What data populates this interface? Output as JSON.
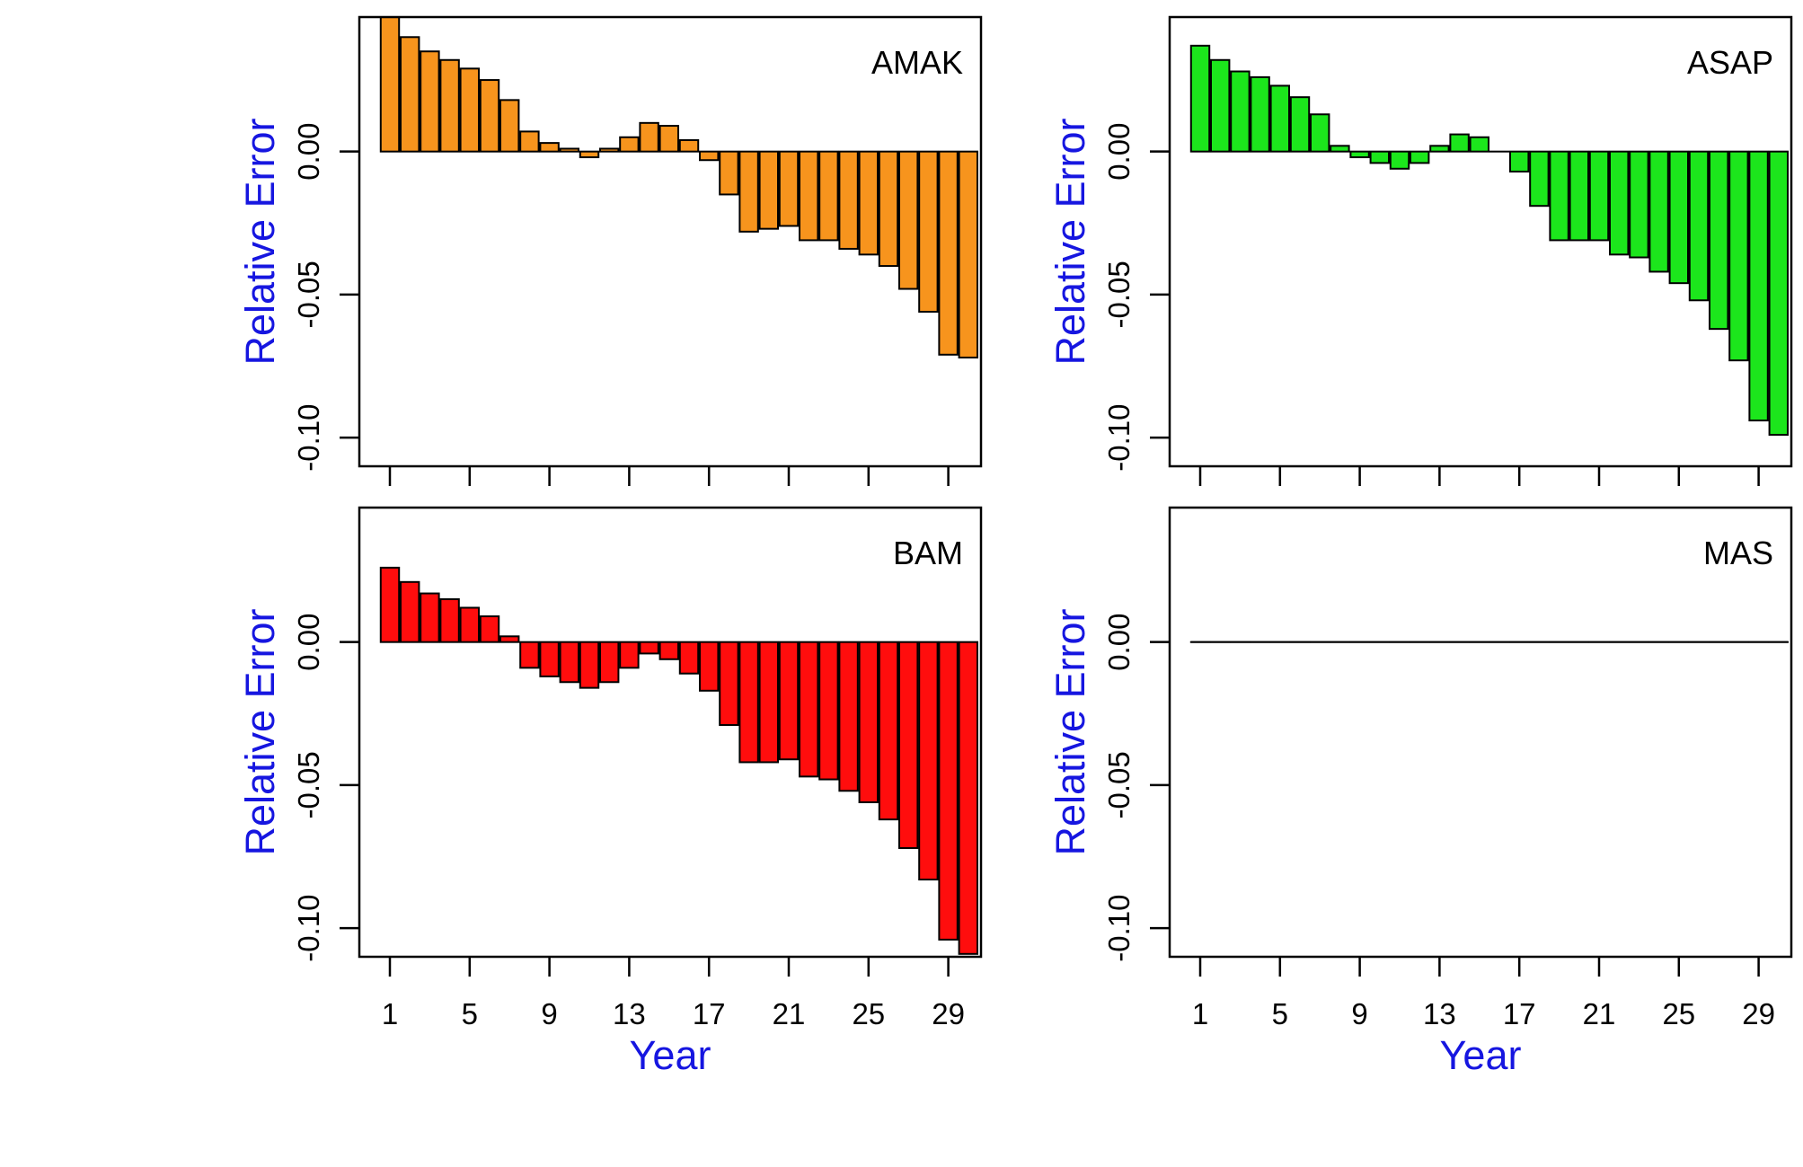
{
  "chart_data": [
    {
      "type": "bar",
      "panel_label": "AMAK",
      "ylabel": "Relative Error",
      "xlabel": "",
      "bar_color": "#F7941D",
      "ylim": [
        -0.11,
        0.047
      ],
      "yticks": [
        "-0.10",
        "-0.05",
        "0.00"
      ],
      "yticks_values": [
        -0.1,
        -0.05,
        0.0
      ],
      "xticks": [
        "1",
        "5",
        "9",
        "13",
        "17",
        "21",
        "25",
        "29"
      ],
      "years": [
        1,
        2,
        3,
        4,
        5,
        6,
        7,
        8,
        9,
        10,
        11,
        12,
        13,
        14,
        15,
        16,
        17,
        18,
        19,
        20,
        21,
        22,
        23,
        24,
        25,
        26,
        27,
        28,
        29,
        30
      ],
      "values": [
        0.047,
        0.04,
        0.035,
        0.032,
        0.029,
        0.025,
        0.018,
        0.007,
        0.003,
        0.001,
        -0.002,
        0.001,
        0.005,
        0.01,
        0.009,
        0.004,
        -0.003,
        -0.015,
        -0.028,
        -0.027,
        -0.026,
        -0.031,
        -0.031,
        -0.034,
        -0.036,
        -0.04,
        -0.048,
        -0.056,
        -0.071,
        -0.072
      ]
    },
    {
      "type": "bar",
      "panel_label": "ASAP",
      "ylabel": "Relative Error",
      "xlabel": "",
      "bar_color": "#1CE61C",
      "ylim": [
        -0.11,
        0.047
      ],
      "yticks": [
        "-0.10",
        "-0.05",
        "0.00"
      ],
      "yticks_values": [
        -0.1,
        -0.05,
        0.0
      ],
      "xticks": [
        "1",
        "5",
        "9",
        "13",
        "17",
        "21",
        "25",
        "29"
      ],
      "years": [
        1,
        2,
        3,
        4,
        5,
        6,
        7,
        8,
        9,
        10,
        11,
        12,
        13,
        14,
        15,
        16,
        17,
        18,
        19,
        20,
        21,
        22,
        23,
        24,
        25,
        26,
        27,
        28,
        29,
        30
      ],
      "values": [
        0.037,
        0.032,
        0.028,
        0.026,
        0.023,
        0.019,
        0.013,
        0.002,
        -0.002,
        -0.004,
        -0.006,
        -0.004,
        0.002,
        0.006,
        0.005,
        0.0,
        -0.007,
        -0.019,
        -0.031,
        -0.031,
        -0.031,
        -0.036,
        -0.037,
        -0.042,
        -0.046,
        -0.052,
        -0.062,
        -0.073,
        -0.094,
        -0.099
      ]
    },
    {
      "type": "bar",
      "panel_label": "BAM",
      "ylabel": "Relative Error",
      "xlabel": "Year",
      "bar_color": "#FF0D0D",
      "ylim": [
        -0.11,
        0.047
      ],
      "yticks": [
        "-0.10",
        "-0.05",
        "0.00"
      ],
      "yticks_values": [
        -0.1,
        -0.05,
        0.0
      ],
      "xticks": [
        "1",
        "5",
        "9",
        "13",
        "17",
        "21",
        "25",
        "29"
      ],
      "years": [
        1,
        2,
        3,
        4,
        5,
        6,
        7,
        8,
        9,
        10,
        11,
        12,
        13,
        14,
        15,
        16,
        17,
        18,
        19,
        20,
        21,
        22,
        23,
        24,
        25,
        26,
        27,
        28,
        29,
        30
      ],
      "values": [
        0.026,
        0.021,
        0.017,
        0.015,
        0.012,
        0.009,
        0.002,
        -0.009,
        -0.012,
        -0.014,
        -0.016,
        -0.014,
        -0.009,
        -0.004,
        -0.006,
        -0.011,
        -0.017,
        -0.029,
        -0.042,
        -0.042,
        -0.041,
        -0.047,
        -0.048,
        -0.052,
        -0.056,
        -0.062,
        -0.072,
        -0.083,
        -0.104,
        -0.109
      ]
    },
    {
      "type": "bar",
      "panel_label": "MAS",
      "ylabel": "Relative Error",
      "xlabel": "Year",
      "bar_color": "#FFFFFF",
      "ylim": [
        -0.11,
        0.047
      ],
      "yticks": [
        "-0.10",
        "-0.05",
        "0.00"
      ],
      "yticks_values": [
        -0.1,
        -0.05,
        0.0
      ],
      "xticks": [
        "1",
        "5",
        "9",
        "13",
        "17",
        "21",
        "25",
        "29"
      ],
      "years": [
        1,
        2,
        3,
        4,
        5,
        6,
        7,
        8,
        9,
        10,
        11,
        12,
        13,
        14,
        15,
        16,
        17,
        18,
        19,
        20,
        21,
        22,
        23,
        24,
        25,
        26,
        27,
        28,
        29,
        30
      ],
      "values": [
        0,
        0,
        0,
        0,
        0,
        0,
        0,
        0,
        0,
        0,
        0,
        0,
        0,
        0,
        0,
        0,
        0,
        0,
        0,
        0,
        0,
        0,
        0,
        0,
        0,
        0,
        0,
        0,
        0,
        0
      ]
    }
  ]
}
